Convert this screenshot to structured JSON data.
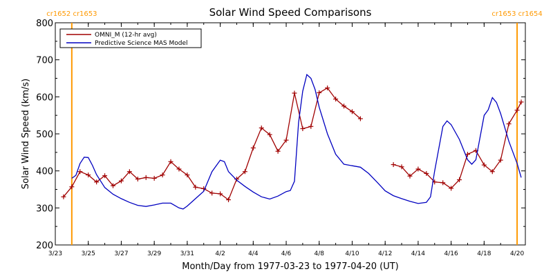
{
  "chart_data": {
    "type": "line",
    "title": "Solar Wind Speed Comparisons",
    "xlabel": "Month/Day from 1977-03-23 to 1977-04-20 (UT)",
    "ylabel": "Solar Wind Speed (km/s)",
    "xlim": [
      "1977-03-23",
      "1977-04-20T12:00"
    ],
    "ylim": [
      200,
      800
    ],
    "yticks": [
      200,
      300,
      400,
      500,
      600,
      700,
      800
    ],
    "xtick_labels": [
      "3/23",
      "3/25",
      "3/27",
      "3/29",
      "3/31",
      "4/2",
      "4/4",
      "4/6",
      "4/8",
      "4/10",
      "4/12",
      "4/14",
      "4/16",
      "4/18",
      "4/20"
    ],
    "xtick_dates": [
      "1977-03-23",
      "1977-03-25",
      "1977-03-27",
      "1977-03-29",
      "1977-03-31",
      "1977-04-02",
      "1977-04-04",
      "1977-04-06",
      "1977-04-08",
      "1977-04-10",
      "1977-04-12",
      "1977-04-14",
      "1977-04-16",
      "1977-04-18",
      "1977-04-20"
    ],
    "carrington_markers": [
      {
        "date": "1977-03-24",
        "label": "cr1652 cr1653"
      },
      {
        "date": "1977-04-20",
        "label": "cr1653 cr1654"
      }
    ],
    "carrington_color": "#FF9900",
    "legend_position": "top-left",
    "series": [
      {
        "name": "OMNI_M (12-hr avg)",
        "color": "#A00000",
        "markers": true,
        "segments": [
          [
            [
              "1977-03-23T12:00",
              330
            ],
            [
              "1977-03-24T00:00",
              357
            ],
            [
              "1977-03-24T12:00",
              398
            ],
            [
              "1977-03-25T00:00",
              389
            ],
            [
              "1977-03-25T12:00",
              370
            ],
            [
              "1977-03-26T00:00",
              387
            ],
            [
              "1977-03-26T12:00",
              360
            ],
            [
              "1977-03-27T00:00",
              373
            ],
            [
              "1977-03-27T12:00",
              398
            ],
            [
              "1977-03-28T00:00",
              378
            ],
            [
              "1977-03-28T12:00",
              382
            ],
            [
              "1977-03-29T00:00",
              380
            ],
            [
              "1977-03-29T12:00",
              389
            ],
            [
              "1977-03-30T00:00",
              425
            ],
            [
              "1977-03-30T12:00",
              405
            ],
            [
              "1977-03-31T00:00",
              389
            ],
            [
              "1977-03-31T12:00",
              356
            ],
            [
              "1977-04-01T00:00",
              352
            ],
            [
              "1977-04-01T12:00",
              340
            ],
            [
              "1977-04-02T00:00",
              338
            ],
            [
              "1977-04-02T12:00",
              322
            ],
            [
              "1977-04-03T00:00",
              378
            ],
            [
              "1977-04-03T12:00",
              398
            ],
            [
              "1977-04-04T00:00",
              462
            ],
            [
              "1977-04-04T12:00",
              516
            ],
            [
              "1977-04-05T00:00",
              498
            ],
            [
              "1977-04-05T12:00",
              453
            ],
            [
              "1977-04-06T00:00",
              483
            ],
            [
              "1977-04-06T12:00",
              610
            ],
            [
              "1977-04-07T00:00",
              514
            ],
            [
              "1977-04-07T12:00",
              520
            ],
            [
              "1977-04-08T00:00",
              611
            ],
            [
              "1977-04-08T12:00",
              624
            ],
            [
              "1977-04-09T00:00",
              594
            ],
            [
              "1977-04-09T12:00",
              575
            ],
            [
              "1977-04-10T00:00",
              560
            ],
            [
              "1977-04-10T12:00",
              541
            ]
          ],
          [
            [
              "1977-04-12T12:00",
              417
            ],
            [
              "1977-04-13T00:00",
              411
            ],
            [
              "1977-04-13T12:00",
              386
            ],
            [
              "1977-04-14T00:00",
              405
            ],
            [
              "1977-04-14T12:00",
              393
            ],
            [
              "1977-04-15T00:00",
              370
            ],
            [
              "1977-04-15T12:00",
              368
            ],
            [
              "1977-04-16T00:00",
              353
            ],
            [
              "1977-04-16T12:00",
              376
            ],
            [
              "1977-04-17T00:00",
              445
            ],
            [
              "1977-04-17T12:00",
              455
            ],
            [
              "1977-04-18T00:00",
              416
            ],
            [
              "1977-04-18T12:00",
              398
            ],
            [
              "1977-04-19T00:00",
              429
            ],
            [
              "1977-04-19T12:00",
              527
            ],
            [
              "1977-04-20T00:00",
              564
            ],
            [
              "1977-04-20T06:00",
              586
            ]
          ]
        ]
      },
      {
        "name": "Predictive Science MAS Model",
        "color": "#0000C0",
        "markers": false,
        "segments": [
          [
            [
              "1977-03-24T00:00",
              380
            ],
            [
              "1977-03-24T06:00",
              388
            ],
            [
              "1977-03-24T12:00",
              420
            ],
            [
              "1977-03-24T18:00",
              437
            ],
            [
              "1977-03-25T00:00",
              436
            ],
            [
              "1977-03-25T06:00",
              415
            ],
            [
              "1977-03-25T12:00",
              390
            ],
            [
              "1977-03-26T00:00",
              355
            ],
            [
              "1977-03-26T12:00",
              337
            ],
            [
              "1977-03-27T00:00",
              325
            ],
            [
              "1977-03-27T12:00",
              315
            ],
            [
              "1977-03-28T00:00",
              307
            ],
            [
              "1977-03-28T12:00",
              304
            ],
            [
              "1977-03-29T00:00",
              308
            ],
            [
              "1977-03-29T12:00",
              313
            ],
            [
              "1977-03-30T00:00",
              313
            ],
            [
              "1977-03-30T12:00",
              300
            ],
            [
              "1977-03-30T18:00",
              297
            ],
            [
              "1977-03-31T00:00",
              305
            ],
            [
              "1977-03-31T12:00",
              325
            ],
            [
              "1977-04-01T00:00",
              345
            ],
            [
              "1977-04-01T12:00",
              398
            ],
            [
              "1977-04-02T00:00",
              429
            ],
            [
              "1977-04-02T06:00",
              425
            ],
            [
              "1977-04-02T12:00",
              398
            ],
            [
              "1977-04-03T00:00",
              375
            ],
            [
              "1977-04-03T12:00",
              358
            ],
            [
              "1977-04-04T00:00",
              343
            ],
            [
              "1977-04-04T12:00",
              330
            ],
            [
              "1977-04-05T00:00",
              324
            ],
            [
              "1977-04-05T12:00",
              332
            ],
            [
              "1977-04-06T00:00",
              344
            ],
            [
              "1977-04-06T06:00",
              347
            ],
            [
              "1977-04-06T12:00",
              372
            ],
            [
              "1977-04-06T18:00",
              530
            ],
            [
              "1977-04-07T00:00",
              615
            ],
            [
              "1977-04-07T06:00",
              660
            ],
            [
              "1977-04-07T12:00",
              650
            ],
            [
              "1977-04-07T18:00",
              620
            ],
            [
              "1977-04-08T00:00",
              572
            ],
            [
              "1977-04-08T12:00",
              500
            ],
            [
              "1977-04-09T00:00",
              445
            ],
            [
              "1977-04-09T12:00",
              418
            ],
            [
              "1977-04-10T00:00",
              414
            ],
            [
              "1977-04-10T12:00",
              410
            ],
            [
              "1977-04-11T00:00",
              393
            ],
            [
              "1977-04-11T12:00",
              370
            ],
            [
              "1977-04-12T00:00",
              346
            ],
            [
              "1977-04-12T12:00",
              333
            ],
            [
              "1977-04-13T00:00",
              325
            ],
            [
              "1977-04-13T12:00",
              318
            ],
            [
              "1977-04-14T00:00",
              312
            ],
            [
              "1977-04-14T12:00",
              315
            ],
            [
              "1977-04-14T18:00",
              330
            ],
            [
              "1977-04-15T00:00",
              400
            ],
            [
              "1977-04-15T12:00",
              520
            ],
            [
              "1977-04-15T18:00",
              535
            ],
            [
              "1977-04-16T00:00",
              525
            ],
            [
              "1977-04-16T12:00",
              485
            ],
            [
              "1977-04-17T00:00",
              430
            ],
            [
              "1977-04-17T06:00",
              418
            ],
            [
              "1977-04-17T12:00",
              430
            ],
            [
              "1977-04-17T18:00",
              490
            ],
            [
              "1977-04-18T00:00",
              550
            ],
            [
              "1977-04-18T06:00",
              565
            ],
            [
              "1977-04-18T12:00",
              598
            ],
            [
              "1977-04-18T18:00",
              585
            ],
            [
              "1977-04-19T00:00",
              555
            ],
            [
              "1977-04-19T12:00",
              480
            ],
            [
              "1977-04-20T00:00",
              420
            ],
            [
              "1977-04-20T06:00",
              382
            ]
          ]
        ]
      }
    ]
  }
}
